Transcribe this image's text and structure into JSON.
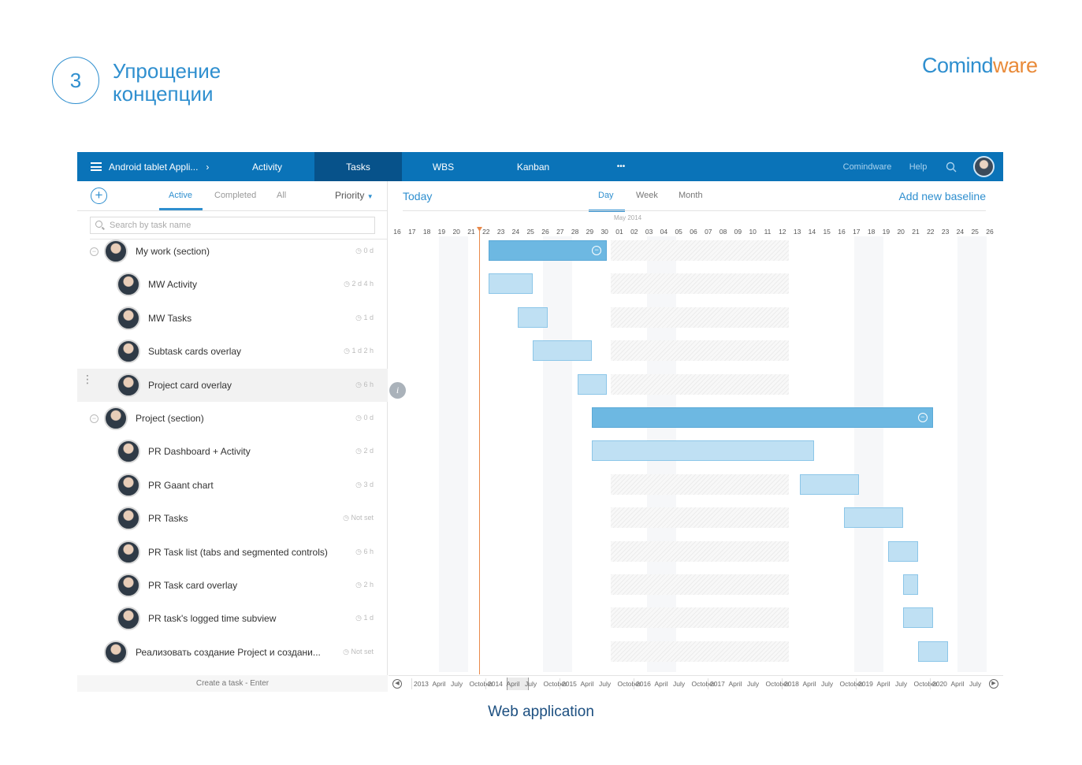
{
  "slide": {
    "step_number": "3",
    "title": "Упрощение\nконцепции",
    "brand_part1": "Comind",
    "brand_part2": "ware",
    "caption": "Web application"
  },
  "topbar": {
    "project": "Android tablet Appli...",
    "project_chevron": "›",
    "tabs": [
      {
        "label": "Activity",
        "active": false
      },
      {
        "label": "Tasks",
        "active": true
      },
      {
        "label": "WBS",
        "active": false
      },
      {
        "label": "Kanban",
        "active": false
      }
    ],
    "more": "•••",
    "company": "Comindware",
    "help": "Help"
  },
  "left": {
    "filters": [
      {
        "label": "Active",
        "active": true
      },
      {
        "label": "Completed",
        "active": false
      },
      {
        "label": "All",
        "active": false
      }
    ],
    "sort": "Priority",
    "search_placeholder": "Search by task name",
    "tasks": [
      {
        "name": "My work (section)",
        "duration": "0 d",
        "section": true
      },
      {
        "name": "MW Activity",
        "duration": "2 d 4 h"
      },
      {
        "name": "MW Tasks",
        "duration": "1 d"
      },
      {
        "name": "Subtask cards overlay",
        "duration": "1 d 2 h"
      },
      {
        "name": "Project card overlay",
        "duration": "6 h",
        "selected": true
      },
      {
        "name": "Project (section)",
        "duration": "0 d",
        "section": true
      },
      {
        "name": "PR Dashboard + Activity",
        "duration": "2 d"
      },
      {
        "name": "PR Gaant chart",
        "duration": "3 d"
      },
      {
        "name": "PR Tasks",
        "duration": "Not set"
      },
      {
        "name": "PR Task list (tabs and segmented controls)",
        "duration": "6 h"
      },
      {
        "name": "PR Task card overlay",
        "duration": "2 h"
      },
      {
        "name": "PR task's logged time subview",
        "duration": "1 d"
      },
      {
        "name": "Реализовать создание Project и создани...",
        "duration": "Not set",
        "root": true
      }
    ],
    "create_hint": "Create a task - Enter"
  },
  "gantt": {
    "today": "Today",
    "scales": [
      {
        "label": "Day",
        "active": true
      },
      {
        "label": "Week",
        "active": false
      },
      {
        "label": "Month",
        "active": false
      }
    ],
    "add_baseline": "Add new baseline",
    "month_label": "May 2014",
    "days": [
      "16",
      "17",
      "18",
      "19",
      "20",
      "21",
      "22",
      "23",
      "24",
      "25",
      "26",
      "27",
      "28",
      "29",
      "30",
      "01",
      "02",
      "03",
      "04",
      "05",
      "06",
      "07",
      "08",
      "09",
      "10",
      "11",
      "12",
      "13",
      "14",
      "15",
      "16",
      "17",
      "18",
      "19",
      "20",
      "21",
      "22",
      "23",
      "24",
      "25",
      "26"
    ],
    "info_glyph": "i",
    "collapse_glyph": "⊖",
    "timeline_labels": [
      "2013",
      "April",
      "July",
      "October",
      "2014",
      "April",
      "July",
      "October",
      "2015",
      "April",
      "July",
      "October",
      "2016",
      "April",
      "July",
      "October",
      "2017",
      "April",
      "July",
      "October",
      "2018",
      "April",
      "July",
      "October",
      "2019",
      "April",
      "July",
      "October",
      "2020",
      "April",
      "July"
    ],
    "nav_prev": "◀",
    "nav_next": "▶"
  },
  "colors": {
    "topbar": "#0a73b8",
    "topbar_active": "#07528a",
    "accent": "#2f8fcf",
    "section_bar": "#6db8e2",
    "task_bar": "#bfe0f3",
    "today_line": "#e9894a",
    "brand_orange": "#e98b3a"
  }
}
